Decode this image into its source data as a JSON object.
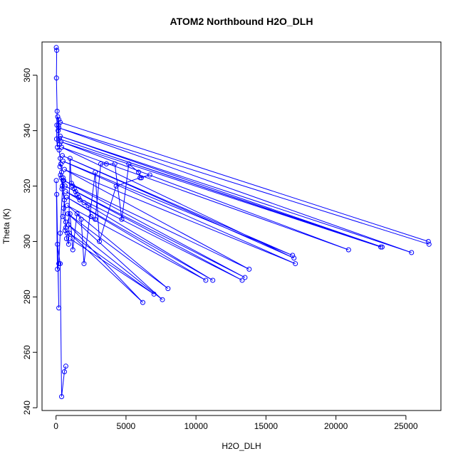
{
  "chart_data": {
    "type": "line",
    "title": "ATOM2 Northbound H2O_DLH",
    "xlabel": "H2O_DLH",
    "ylabel": "Theta (K)",
    "xlim": [
      -1000,
      27500
    ],
    "ylim": [
      239,
      372
    ],
    "x_ticks": [
      0,
      5000,
      10000,
      15000,
      20000,
      25000
    ],
    "y_ticks": [
      240,
      260,
      280,
      300,
      320,
      340,
      360
    ],
    "grid": false,
    "legend": "none",
    "line_color": "#0000ff",
    "marker": "open-circle",
    "series": [
      {
        "x": [
          20,
          50,
          30,
          80,
          60,
          40,
          100,
          150,
          120,
          200,
          180,
          250,
          220,
          300,
          280,
          350,
          400,
          320,
          450,
          380,
          500,
          420,
          600,
          550,
          480,
          700,
          650,
          800,
          750,
          900,
          1000,
          1100,
          1200,
          1300,
          1400,
          1500,
          1600,
          1700,
          2000,
          2300,
          2500,
          2800,
          3200,
          3600,
          4200,
          4700,
          5200,
          5900,
          6100,
          6700,
          6000,
          4300,
          3100,
          2800,
          2000,
          1800,
          1500,
          1200,
          1000,
          700,
          500,
          300,
          200,
          100,
          20
        ],
        "y": [
          370,
          369,
          359,
          347,
          342,
          337,
          334,
          340,
          345,
          344,
          342,
          335,
          333,
          330,
          327,
          328,
          325,
          324,
          320,
          323,
          322,
          319,
          315,
          312,
          309,
          307,
          304,
          303,
          301,
          299,
          330,
          321,
          320,
          319,
          318,
          317,
          316,
          315,
          314,
          313,
          309,
          308,
          328,
          328,
          328,
          308,
          328,
          325,
          323,
          324,
          323,
          320,
          300,
          325,
          292,
          308,
          310,
          297,
          310,
          305,
          323,
          303,
          292,
          290,
          322
        ]
      },
      {
        "x": [
          300,
          26600
        ],
        "y": [
          343,
          300
        ]
      },
      {
        "x": [
          26650,
          200,
          25400,
          300,
          23300,
          250,
          23200,
          350,
          20900,
          400,
          17000,
          450,
          16900,
          500,
          17100,
          600,
          13800,
          550,
          13500,
          650,
          13300,
          700,
          11200,
          750,
          10700,
          800,
          8000,
          850,
          7600,
          900,
          6200,
          950,
          7000,
          1000
        ],
        "y": [
          299,
          341,
          296,
          338,
          298,
          337,
          298,
          336,
          297,
          334,
          294,
          331,
          295,
          329,
          292,
          326,
          290,
          322,
          287,
          320,
          286,
          318,
          286,
          316,
          286,
          313,
          283,
          310,
          279,
          306,
          278,
          303,
          281,
          301
        ]
      },
      {
        "x": [
          50,
          200,
          100,
          300,
          400,
          600,
          700
        ],
        "y": [
          317,
          276,
          299,
          292,
          244,
          253,
          255
        ]
      }
    ]
  }
}
